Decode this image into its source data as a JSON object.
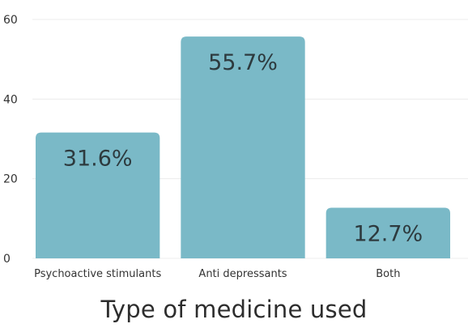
{
  "chart_data": {
    "type": "bar",
    "title": "Type of medicine used",
    "xlabel": "",
    "ylabel": "",
    "categories": [
      "Psychoactive stimulants",
      "Anti depressants",
      "Both"
    ],
    "values": [
      31.6,
      55.7,
      12.7
    ],
    "data_labels": [
      "31.6%",
      "55.7%",
      "12.7%"
    ],
    "ylim": [
      0,
      60
    ],
    "y_ticks": [
      0,
      20,
      40,
      60
    ],
    "y_tick_labels": [
      "0",
      "20",
      "40",
      "60"
    ],
    "grid": true,
    "legend": "none",
    "colors": {
      "bar": "#7ab9c7",
      "grid": "#ececec",
      "tick_text": "#333333",
      "label_text": "#2d3a3e"
    }
  }
}
